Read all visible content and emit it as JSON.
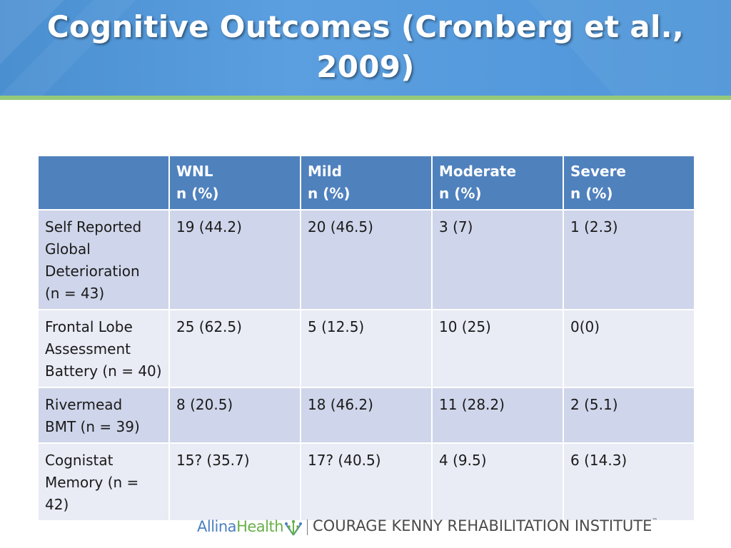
{
  "slide": {
    "title": "Cognitive Outcomes (Cronberg et al., 2009)",
    "colors": {
      "header_band": "#5b9fe0",
      "header_stripe": "#94c97a",
      "table_header": "#4f81bd",
      "row_odd": "#cfd5ea",
      "row_even": "#e9ebf5"
    }
  },
  "table": {
    "headers": [
      {
        "line1": "",
        "line2": ""
      },
      {
        "line1": "WNL",
        "line2": "n (%)"
      },
      {
        "line1": "Mild",
        "line2": "n (%)"
      },
      {
        "line1": "Moderate",
        "line2": "n (%)"
      },
      {
        "line1": "Severe",
        "line2": "n (%)"
      }
    ],
    "rows": [
      {
        "label_lines": [
          "Self Reported",
          "Global",
          "Deterioration",
          "(n = 43)"
        ],
        "cells": [
          "19 (44.2)",
          "20 (46.5)",
          "3 (7)",
          "1 (2.3)"
        ]
      },
      {
        "label_lines": [
          "Frontal Lobe",
          "Assessment",
          "Battery (n = 40)"
        ],
        "cells": [
          "25 (62.5)",
          "5 (12.5)",
          "10 (25)",
          "0(0)"
        ]
      },
      {
        "label_lines": [
          "Rivermead",
          "BMT (n = 39)"
        ],
        "cells": [
          "8 (20.5)",
          "18 (46.2)",
          "11 (28.2)",
          "2 (5.1)"
        ]
      },
      {
        "label_lines": [
          "Cognistat",
          "Memory (n =",
          "42)"
        ],
        "cells": [
          "15? (35.7)",
          "17? (40.5)",
          "4 (9.5)",
          "6 (14.3)"
        ]
      }
    ]
  },
  "footer": {
    "allina_part1": "Allina",
    "allina_part2": "Health",
    "allina_icon": "allina-leaf-icon",
    "institute": "COURAGE KENNY REHABILITATION INSTITUTE",
    "trademark": "™"
  }
}
